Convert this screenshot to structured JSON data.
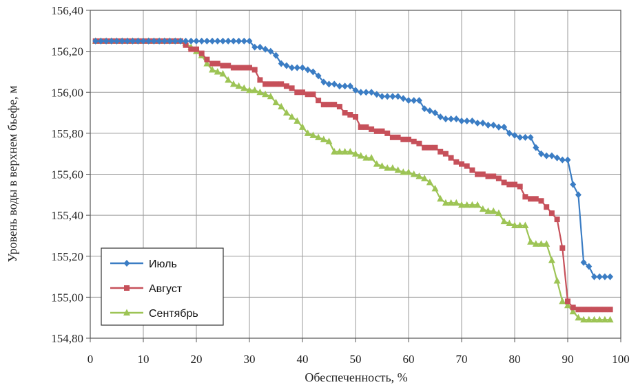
{
  "chart_data": {
    "type": "line",
    "title": "",
    "xlabel": "Обеспеченность, %",
    "ylabel": "Уровень воды в верхнем бьефе, м",
    "xlim": [
      0,
      100
    ],
    "ylim": [
      154.8,
      156.4
    ],
    "x_ticks": [
      0,
      10,
      20,
      30,
      40,
      50,
      60,
      70,
      80,
      90,
      100
    ],
    "x_tick_labels": [
      "0",
      "10",
      "20",
      "30",
      "40",
      "50",
      "60",
      "70",
      "80",
      "90",
      "100"
    ],
    "y_ticks": [
      154.8,
      155.0,
      155.2,
      155.4,
      155.6,
      155.8,
      156.0,
      156.2,
      156.4
    ],
    "y_tick_labels": [
      "154,80",
      "155,00",
      "155,20",
      "155,40",
      "155,60",
      "155,80",
      "156,00",
      "156,20",
      "156,40"
    ],
    "grid": true,
    "legend_position": "bottom-left",
    "series": [
      {
        "name": "Июль",
        "color": "#3b7dc4",
        "marker": "diamond",
        "x": [
          1,
          2,
          3,
          4,
          5,
          6,
          7,
          8,
          9,
          10,
          11,
          12,
          13,
          14,
          15,
          16,
          17,
          18,
          19,
          20,
          21,
          22,
          23,
          24,
          25,
          26,
          27,
          28,
          29,
          30,
          31,
          32,
          33,
          34,
          35,
          36,
          37,
          38,
          39,
          40,
          41,
          42,
          43,
          44,
          45,
          46,
          47,
          48,
          49,
          50,
          51,
          52,
          53,
          54,
          55,
          56,
          57,
          58,
          59,
          60,
          61,
          62,
          63,
          64,
          65,
          66,
          67,
          68,
          69,
          70,
          71,
          72,
          73,
          74,
          75,
          76,
          77,
          78,
          79,
          80,
          81,
          82,
          83,
          84,
          85,
          86,
          87,
          88,
          89,
          90,
          91,
          92,
          93,
          94,
          95,
          96,
          97,
          98
        ],
        "y": [
          156.25,
          156.25,
          156.25,
          156.25,
          156.25,
          156.25,
          156.25,
          156.25,
          156.25,
          156.25,
          156.25,
          156.25,
          156.25,
          156.25,
          156.25,
          156.25,
          156.25,
          156.25,
          156.25,
          156.25,
          156.25,
          156.25,
          156.25,
          156.25,
          156.25,
          156.25,
          156.25,
          156.25,
          156.25,
          156.25,
          156.22,
          156.22,
          156.21,
          156.2,
          156.18,
          156.14,
          156.13,
          156.12,
          156.12,
          156.12,
          156.11,
          156.1,
          156.08,
          156.05,
          156.04,
          156.04,
          156.03,
          156.03,
          156.03,
          156.01,
          156.0,
          156.0,
          156.0,
          155.99,
          155.98,
          155.98,
          155.98,
          155.98,
          155.97,
          155.96,
          155.96,
          155.96,
          155.92,
          155.91,
          155.9,
          155.88,
          155.87,
          155.87,
          155.87,
          155.86,
          155.86,
          155.86,
          155.85,
          155.85,
          155.84,
          155.84,
          155.83,
          155.83,
          155.8,
          155.79,
          155.78,
          155.78,
          155.78,
          155.73,
          155.7,
          155.69,
          155.69,
          155.68,
          155.67,
          155.67,
          155.55,
          155.5,
          155.17,
          155.15,
          155.1,
          155.1,
          155.1,
          155.1
        ]
      },
      {
        "name": "Август",
        "color": "#c6505a",
        "marker": "square",
        "x": [
          1,
          2,
          3,
          4,
          5,
          6,
          7,
          8,
          9,
          10,
          11,
          12,
          13,
          14,
          15,
          16,
          17,
          18,
          19,
          20,
          21,
          22,
          23,
          24,
          25,
          26,
          27,
          28,
          29,
          30,
          31,
          32,
          33,
          34,
          35,
          36,
          37,
          38,
          39,
          40,
          41,
          42,
          43,
          44,
          45,
          46,
          47,
          48,
          49,
          50,
          51,
          52,
          53,
          54,
          55,
          56,
          57,
          58,
          59,
          60,
          61,
          62,
          63,
          64,
          65,
          66,
          67,
          68,
          69,
          70,
          71,
          72,
          73,
          74,
          75,
          76,
          77,
          78,
          79,
          80,
          81,
          82,
          83,
          84,
          85,
          86,
          87,
          88,
          89,
          90,
          91,
          92,
          93,
          94,
          95,
          96,
          97,
          98
        ],
        "y": [
          156.25,
          156.25,
          156.25,
          156.25,
          156.25,
          156.25,
          156.25,
          156.25,
          156.25,
          156.25,
          156.25,
          156.25,
          156.25,
          156.25,
          156.25,
          156.25,
          156.25,
          156.23,
          156.21,
          156.21,
          156.19,
          156.16,
          156.14,
          156.14,
          156.13,
          156.13,
          156.12,
          156.12,
          156.12,
          156.12,
          156.11,
          156.06,
          156.04,
          156.04,
          156.04,
          156.04,
          156.03,
          156.02,
          156.0,
          156.0,
          155.99,
          155.99,
          155.96,
          155.94,
          155.94,
          155.94,
          155.93,
          155.9,
          155.89,
          155.88,
          155.83,
          155.83,
          155.82,
          155.81,
          155.81,
          155.8,
          155.78,
          155.78,
          155.77,
          155.77,
          155.76,
          155.75,
          155.73,
          155.73,
          155.73,
          155.71,
          155.7,
          155.68,
          155.66,
          155.65,
          155.64,
          155.62,
          155.6,
          155.6,
          155.59,
          155.59,
          155.58,
          155.56,
          155.55,
          155.55,
          155.54,
          155.49,
          155.48,
          155.48,
          155.47,
          155.44,
          155.41,
          155.38,
          155.24,
          154.98,
          154.95,
          154.94,
          154.94,
          154.94,
          154.94,
          154.94,
          154.94,
          154.94
        ]
      },
      {
        "name": "Сентябрь",
        "color": "#9dc455",
        "marker": "triangle",
        "x": [
          1,
          2,
          3,
          4,
          5,
          6,
          7,
          8,
          9,
          10,
          11,
          12,
          13,
          14,
          15,
          16,
          17,
          18,
          19,
          20,
          21,
          22,
          23,
          24,
          25,
          26,
          27,
          28,
          29,
          30,
          31,
          32,
          33,
          34,
          35,
          36,
          37,
          38,
          39,
          40,
          41,
          42,
          43,
          44,
          45,
          46,
          47,
          48,
          49,
          50,
          51,
          52,
          53,
          54,
          55,
          56,
          57,
          58,
          59,
          60,
          61,
          62,
          63,
          64,
          65,
          66,
          67,
          68,
          69,
          70,
          71,
          72,
          73,
          74,
          75,
          76,
          77,
          78,
          79,
          80,
          81,
          82,
          83,
          84,
          85,
          86,
          87,
          88,
          89,
          90,
          91,
          92,
          93,
          94,
          95,
          96,
          97,
          98
        ],
        "y": [
          156.25,
          156.25,
          156.25,
          156.25,
          156.25,
          156.25,
          156.25,
          156.25,
          156.25,
          156.25,
          156.25,
          156.25,
          156.25,
          156.25,
          156.25,
          156.25,
          156.25,
          156.24,
          156.22,
          156.2,
          156.18,
          156.14,
          156.11,
          156.1,
          156.09,
          156.06,
          156.04,
          156.03,
          156.02,
          156.01,
          156.01,
          156.0,
          155.99,
          155.98,
          155.95,
          155.93,
          155.9,
          155.88,
          155.86,
          155.83,
          155.8,
          155.79,
          155.78,
          155.77,
          155.76,
          155.71,
          155.71,
          155.71,
          155.71,
          155.7,
          155.69,
          155.68,
          155.68,
          155.65,
          155.64,
          155.63,
          155.63,
          155.62,
          155.61,
          155.61,
          155.6,
          155.59,
          155.58,
          155.56,
          155.53,
          155.48,
          155.46,
          155.46,
          155.46,
          155.45,
          155.45,
          155.45,
          155.45,
          155.43,
          155.42,
          155.42,
          155.41,
          155.37,
          155.36,
          155.35,
          155.35,
          155.35,
          155.27,
          155.26,
          155.26,
          155.26,
          155.18,
          155.08,
          154.98,
          154.96,
          154.93,
          154.9,
          154.89,
          154.89,
          154.89,
          154.89,
          154.89,
          154.89
        ]
      }
    ]
  }
}
